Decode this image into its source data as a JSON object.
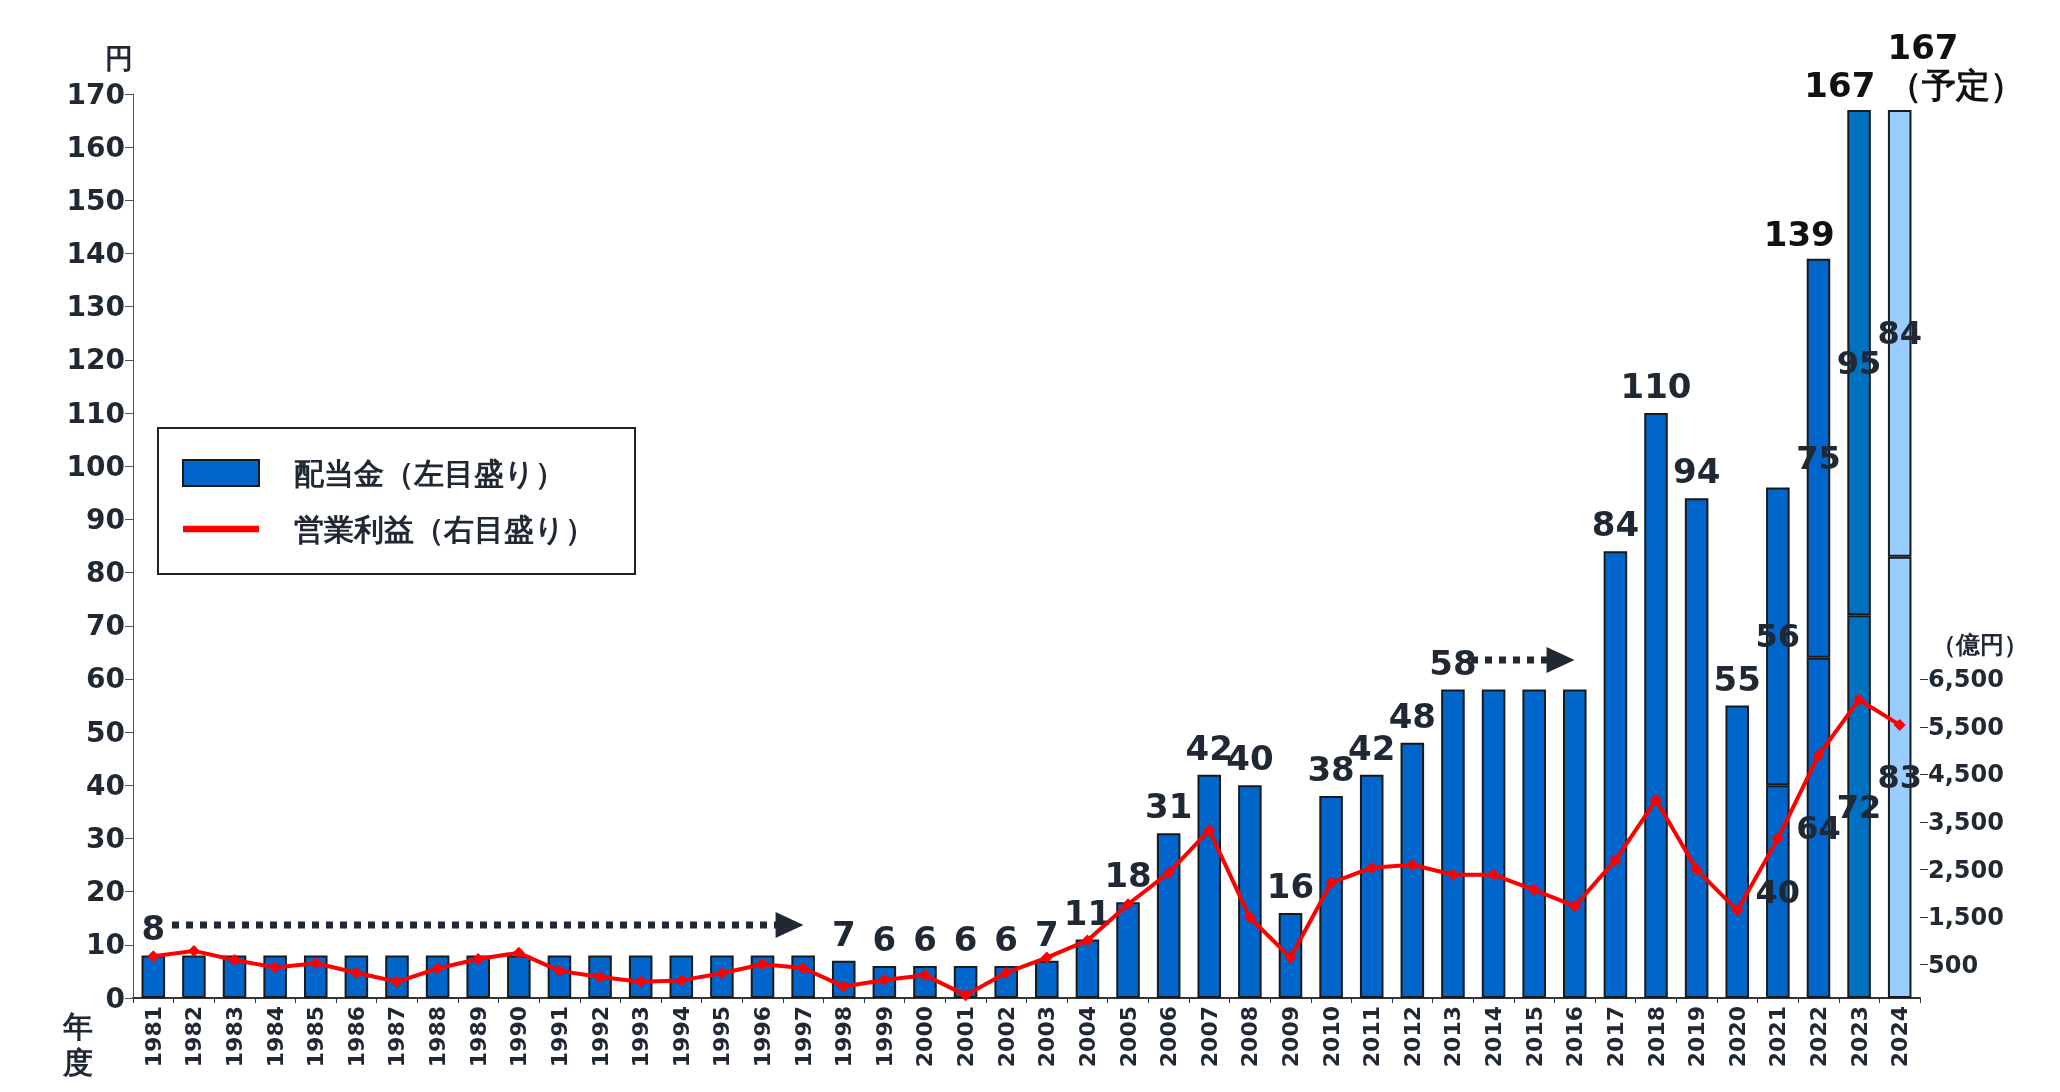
{
  "chart_data": {
    "type": "bar",
    "stacked": true,
    "ylabel": "円",
    "y2label": "（億円）",
    "xlabel": "年度",
    "categories": [
      "1981",
      "1982",
      "1983",
      "1984",
      "1985",
      "1986",
      "1987",
      "1988",
      "1989",
      "1990",
      "1991",
      "1992",
      "1993",
      "1994",
      "1995",
      "1996",
      "1997",
      "1998",
      "1999",
      "2000",
      "2001",
      "2002",
      "2003",
      "2004",
      "2005",
      "2006",
      "2007",
      "2008",
      "2009",
      "2010",
      "2011",
      "2012",
      "2013",
      "2014",
      "2015",
      "2016",
      "2017",
      "2018",
      "2019",
      "2020",
      "2021",
      "2022",
      "2023",
      "2024"
    ],
    "series": [
      {
        "name": "配当金（左目盛り）",
        "color": "#0066cc",
        "values": [
          8,
          8,
          8,
          8,
          8,
          8,
          8,
          8,
          8,
          8,
          8,
          8,
          8,
          8,
          8,
          8,
          8,
          7,
          6,
          6,
          6,
          6,
          7,
          11,
          18,
          31,
          42,
          40,
          16,
          38,
          42,
          48,
          58,
          58,
          58,
          58,
          84,
          110,
          94,
          55,
          40,
          64,
          72,
          83
        ],
        "colors": [
          "#0066cc",
          "#0066cc",
          "#0066cc",
          "#0066cc",
          "#0066cc",
          "#0066cc",
          "#0066cc",
          "#0066cc",
          "#0066cc",
          "#0066cc",
          "#0066cc",
          "#0066cc",
          "#0066cc",
          "#0066cc",
          "#0066cc",
          "#0066cc",
          "#0066cc",
          "#0066cc",
          "#0066cc",
          "#0066cc",
          "#0066cc",
          "#0066cc",
          "#0066cc",
          "#0066cc",
          "#0066cc",
          "#0066cc",
          "#0066cc",
          "#0066cc",
          "#0066cc",
          "#0066cc",
          "#0066cc",
          "#0066cc",
          "#0066cc",
          "#0066cc",
          "#0066cc",
          "#0066cc",
          "#0066cc",
          "#0066cc",
          "#0066cc",
          "#0066cc",
          "#0066cc",
          "#0066cc",
          "#0070c0",
          "#99ccff"
        ],
        "value_labels": [
          "8",
          null,
          null,
          null,
          null,
          null,
          null,
          null,
          null,
          null,
          null,
          null,
          null,
          null,
          null,
          null,
          null,
          "7",
          "6",
          "6",
          "6",
          "6",
          "7",
          "11",
          "18",
          "31",
          "42",
          "40",
          "16",
          "38",
          "42",
          "48",
          "58",
          null,
          null,
          null,
          "84",
          "110",
          "94",
          "55",
          "40",
          "64",
          "72",
          "83"
        ]
      },
      {
        "color": "#0066cc",
        "values": [
          null,
          null,
          null,
          null,
          null,
          null,
          null,
          null,
          null,
          null,
          null,
          null,
          null,
          null,
          null,
          null,
          null,
          null,
          null,
          null,
          null,
          null,
          null,
          null,
          null,
          null,
          null,
          null,
          null,
          null,
          null,
          null,
          null,
          null,
          null,
          null,
          null,
          null,
          null,
          null,
          56,
          75,
          95,
          84
        ],
        "colors": [
          null,
          null,
          null,
          null,
          null,
          null,
          null,
          null,
          null,
          null,
          null,
          null,
          null,
          null,
          null,
          null,
          null,
          null,
          null,
          null,
          null,
          null,
          null,
          null,
          null,
          null,
          null,
          null,
          null,
          null,
          null,
          null,
          null,
          null,
          null,
          null,
          null,
          null,
          null,
          null,
          "#0066cc",
          "#0066cc",
          "#0070c0",
          "#99ccff"
        ],
        "value_labels": [
          null,
          null,
          null,
          null,
          null,
          null,
          null,
          null,
          null,
          null,
          null,
          null,
          null,
          null,
          null,
          null,
          null,
          null,
          null,
          null,
          null,
          null,
          null,
          null,
          null,
          null,
          null,
          null,
          null,
          null,
          null,
          null,
          null,
          null,
          null,
          null,
          null,
          null,
          null,
          null,
          "56",
          "75",
          "95",
          "84"
        ]
      },
      {
        "name": "営業利益（右目盛り）",
        "type": "line",
        "axis": "y2",
        "color": "#ff0000",
        "values": [
          680,
          790,
          600,
          440,
          530,
          330,
          140,
          420,
          620,
          750,
          370,
          240,
          140,
          170,
          320,
          510,
          430,
          40,
          180,
          280,
          -140,
          330,
          650,
          1010,
          1770,
          2430,
          3330,
          1490,
          650,
          2220,
          2540,
          2600,
          2390,
          2390,
          2070,
          1730,
          2700,
          3960,
          2500,
          1640,
          3150,
          4900,
          6070,
          5540
        ]
      }
    ],
    "totals": [
      null,
      null,
      null,
      null,
      null,
      null,
      null,
      null,
      null,
      null,
      null,
      null,
      null,
      null,
      null,
      null,
      null,
      null,
      null,
      null,
      null,
      null,
      null,
      null,
      null,
      null,
      null,
      null,
      null,
      null,
      null,
      null,
      null,
      null,
      null,
      null,
      null,
      null,
      null,
      null,
      null,
      "139",
      "167",
      "167\n（予定）"
    ],
    "ylim": [
      0,
      170
    ],
    "yticks": [
      0,
      10,
      20,
      30,
      40,
      50,
      60,
      70,
      80,
      90,
      100,
      110,
      120,
      130,
      140,
      150,
      160,
      170
    ],
    "y2lim": [
      -200,
      18800
    ],
    "y2ticks": [
      {
        "value": 500,
        "label": "500"
      },
      {
        "value": 1500,
        "label": "1,500"
      },
      {
        "value": 2500,
        "label": "2,500"
      },
      {
        "value": 3500,
        "label": "3,500"
      },
      {
        "value": 4500,
        "label": "4,500"
      },
      {
        "value": 5500,
        "label": "5,500"
      },
      {
        "value": 6500,
        "label": "6,500"
      }
    ],
    "marker": "diamond",
    "line_style": "solid",
    "legend": "left",
    "grid": false
  }
}
